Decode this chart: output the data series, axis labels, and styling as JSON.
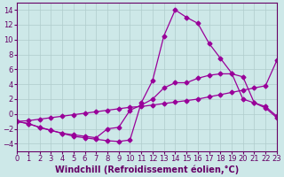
{
  "xlabel": "Windchill (Refroidissement éolien,°C)",
  "xlim": [
    0,
    23
  ],
  "ylim": [
    -5,
    15
  ],
  "yticks": [
    -4,
    -2,
    0,
    2,
    4,
    6,
    8,
    10,
    12,
    14
  ],
  "xticks": [
    0,
    1,
    2,
    3,
    4,
    5,
    6,
    7,
    8,
    9,
    10,
    11,
    12,
    13,
    14,
    15,
    16,
    17,
    18,
    19,
    20,
    21,
    22,
    23
  ],
  "background_color": "#cde8e8",
  "grid_color": "#b0cccc",
  "line_color": "#990099",
  "curve1_x": [
    0,
    1,
    2,
    3,
    4,
    5,
    6,
    7,
    8,
    9,
    10,
    11,
    12,
    13,
    14,
    15,
    16,
    17,
    18,
    19,
    20,
    21,
    22,
    23
  ],
  "curve1_y": [
    -1.0,
    -1.3,
    -1.8,
    -2.2,
    -2.6,
    -3.0,
    -3.2,
    -3.4,
    -3.6,
    -3.7,
    -3.5,
    1.5,
    4.5,
    10.5,
    14.0,
    13.0,
    12.2,
    9.5,
    7.5,
    5.5,
    2.0,
    1.5,
    0.8,
    -0.5
  ],
  "curve2_x": [
    0,
    1,
    2,
    3,
    4,
    5,
    6,
    7,
    8,
    9,
    10,
    11,
    12,
    13,
    14,
    15,
    16,
    17,
    18,
    19,
    20,
    21,
    22,
    23
  ],
  "curve2_y": [
    -1.0,
    -1.3,
    -1.8,
    -2.2,
    -2.6,
    -2.8,
    -3.0,
    -3.2,
    -2.0,
    -1.8,
    0.5,
    1.2,
    2.0,
    3.5,
    4.2,
    4.2,
    4.8,
    5.2,
    5.4,
    5.4,
    5.0,
    1.5,
    1.0,
    -0.3
  ],
  "curve3_x": [
    0,
    1,
    2,
    3,
    4,
    5,
    6,
    7,
    8,
    9,
    10,
    11,
    12,
    13,
    14,
    15,
    16,
    17,
    18,
    19,
    20,
    21,
    22,
    23
  ],
  "curve3_y": [
    -1.0,
    -0.9,
    -0.7,
    -0.5,
    -0.3,
    -0.1,
    0.1,
    0.3,
    0.5,
    0.7,
    0.9,
    1.0,
    1.2,
    1.4,
    1.6,
    1.8,
    2.0,
    2.3,
    2.6,
    2.9,
    3.2,
    3.5,
    3.8,
    7.2
  ],
  "marker": "D",
  "markersize": 2.5,
  "linewidth": 0.9,
  "font_color": "#660066",
  "tick_fontsize": 6.0,
  "label_fontsize": 7.0
}
